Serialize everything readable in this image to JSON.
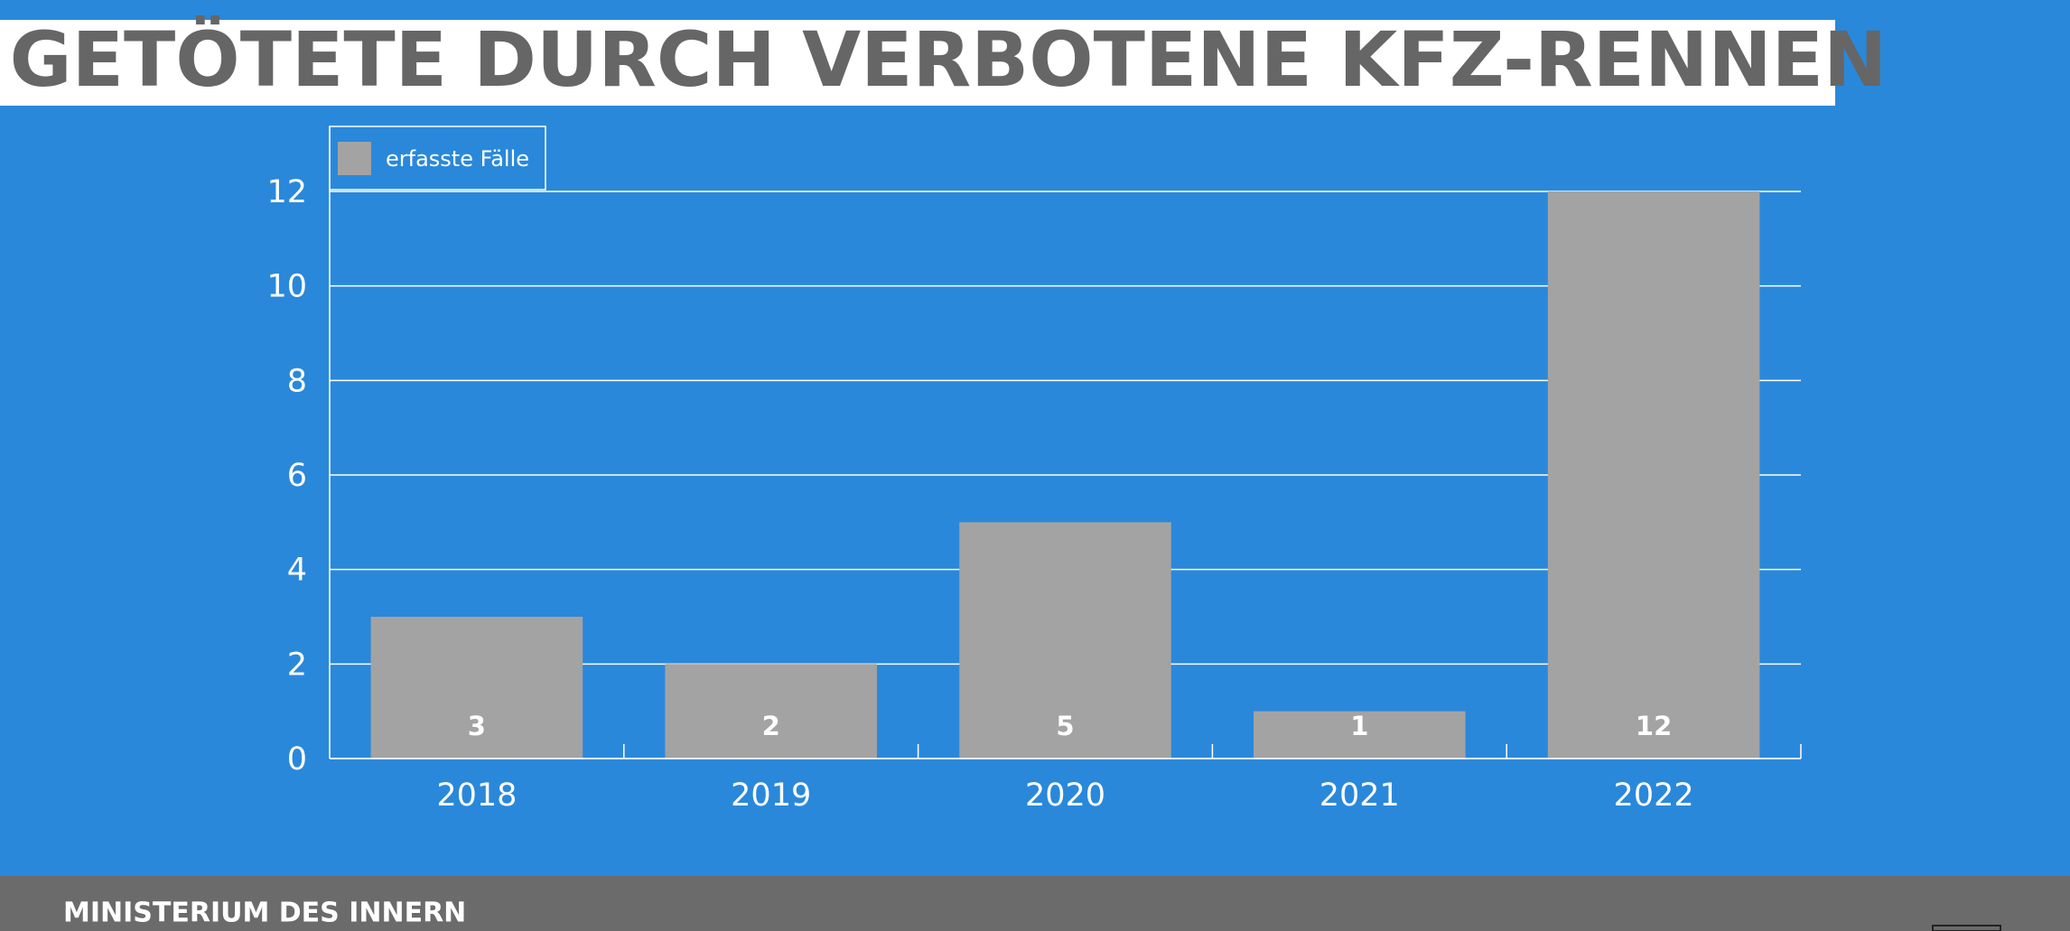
{
  "chart_data": {
    "type": "bar",
    "title": "GETÖTETE DURCH VERBOTENE KFZ-RENNEN",
    "categories": [
      "2018",
      "2019",
      "2020",
      "2021",
      "2022"
    ],
    "series": [
      {
        "name": "erfasste Fälle",
        "color": "#a3a3a3",
        "values": [
          3,
          2,
          5,
          1,
          12
        ]
      }
    ],
    "ylim": [
      0,
      12
    ],
    "yticks": [
      0,
      2,
      4,
      6,
      8,
      10,
      12
    ],
    "grid": true,
    "legend": "top-left"
  },
  "footer": {
    "text": "MINISTERIUM DES INNERN"
  }
}
